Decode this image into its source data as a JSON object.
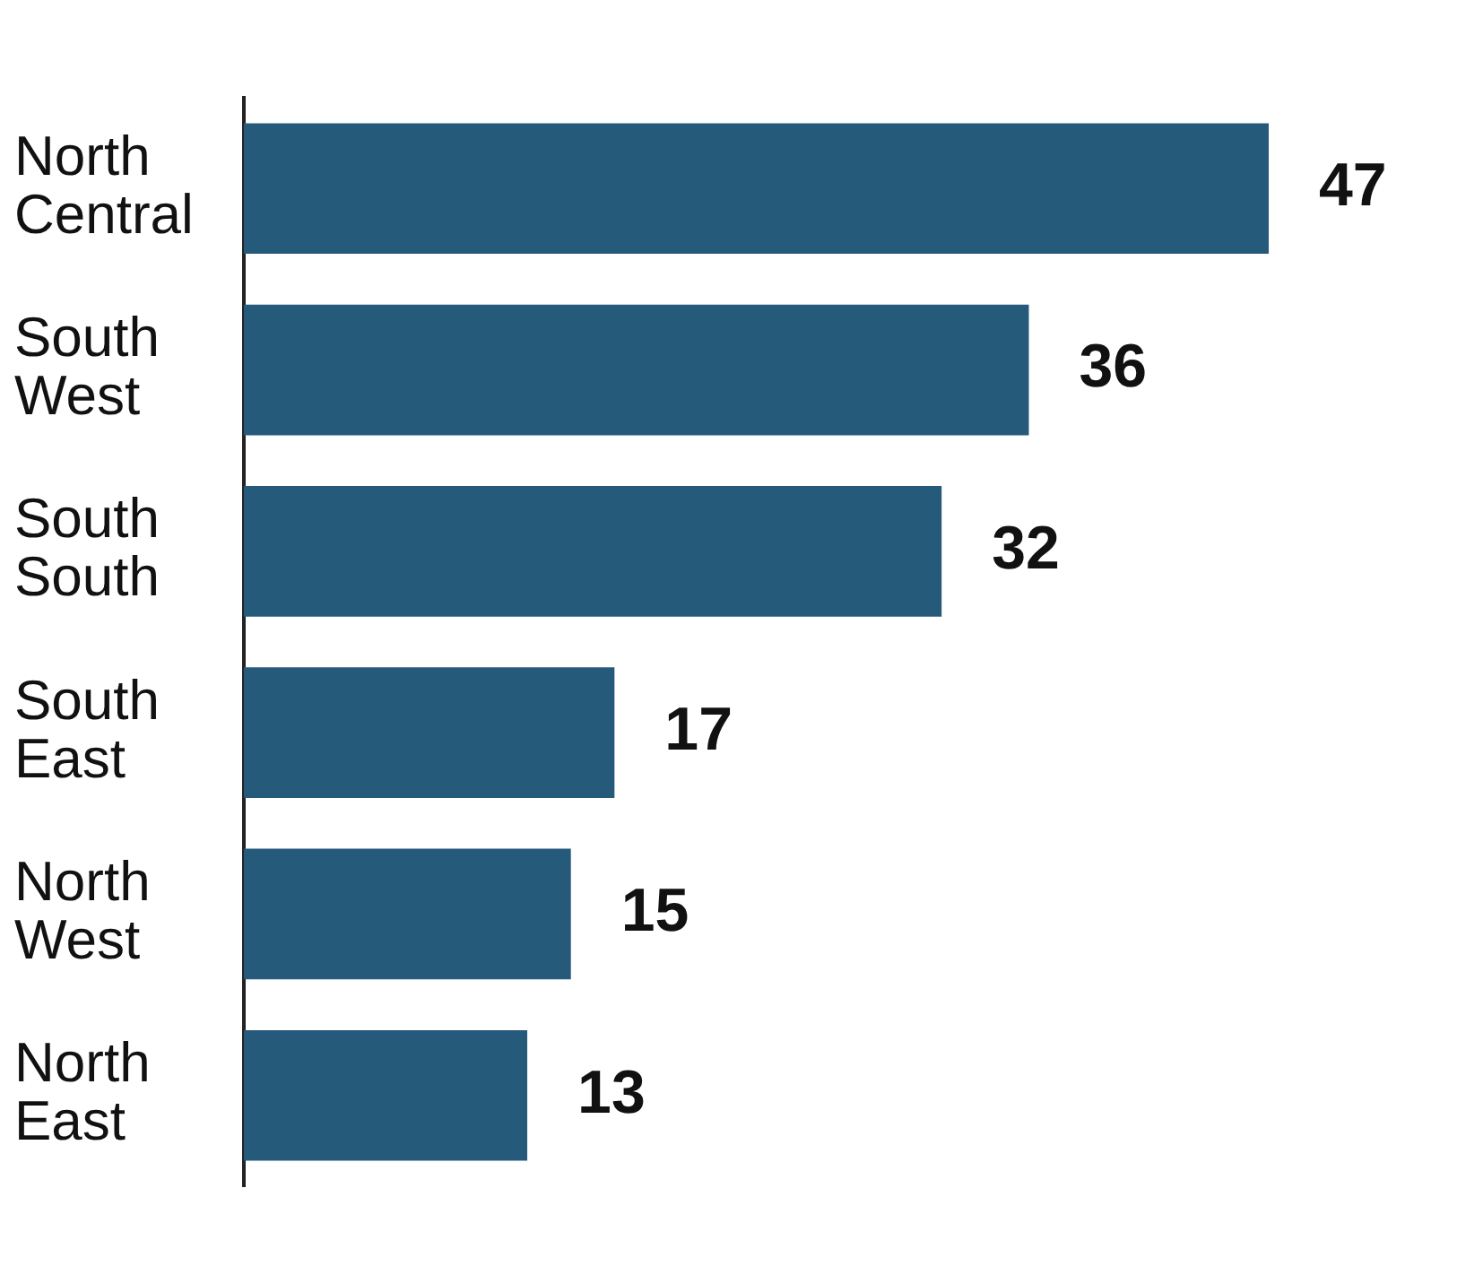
{
  "chart_data": {
    "type": "bar",
    "orientation": "horizontal",
    "categories": [
      "North Central",
      "South West",
      "South South",
      "South East",
      "North West",
      "North East"
    ],
    "values": [
      47,
      36,
      32,
      17,
      15,
      13
    ],
    "color": "#265a7a",
    "data_labels": true,
    "legend": false
  }
}
